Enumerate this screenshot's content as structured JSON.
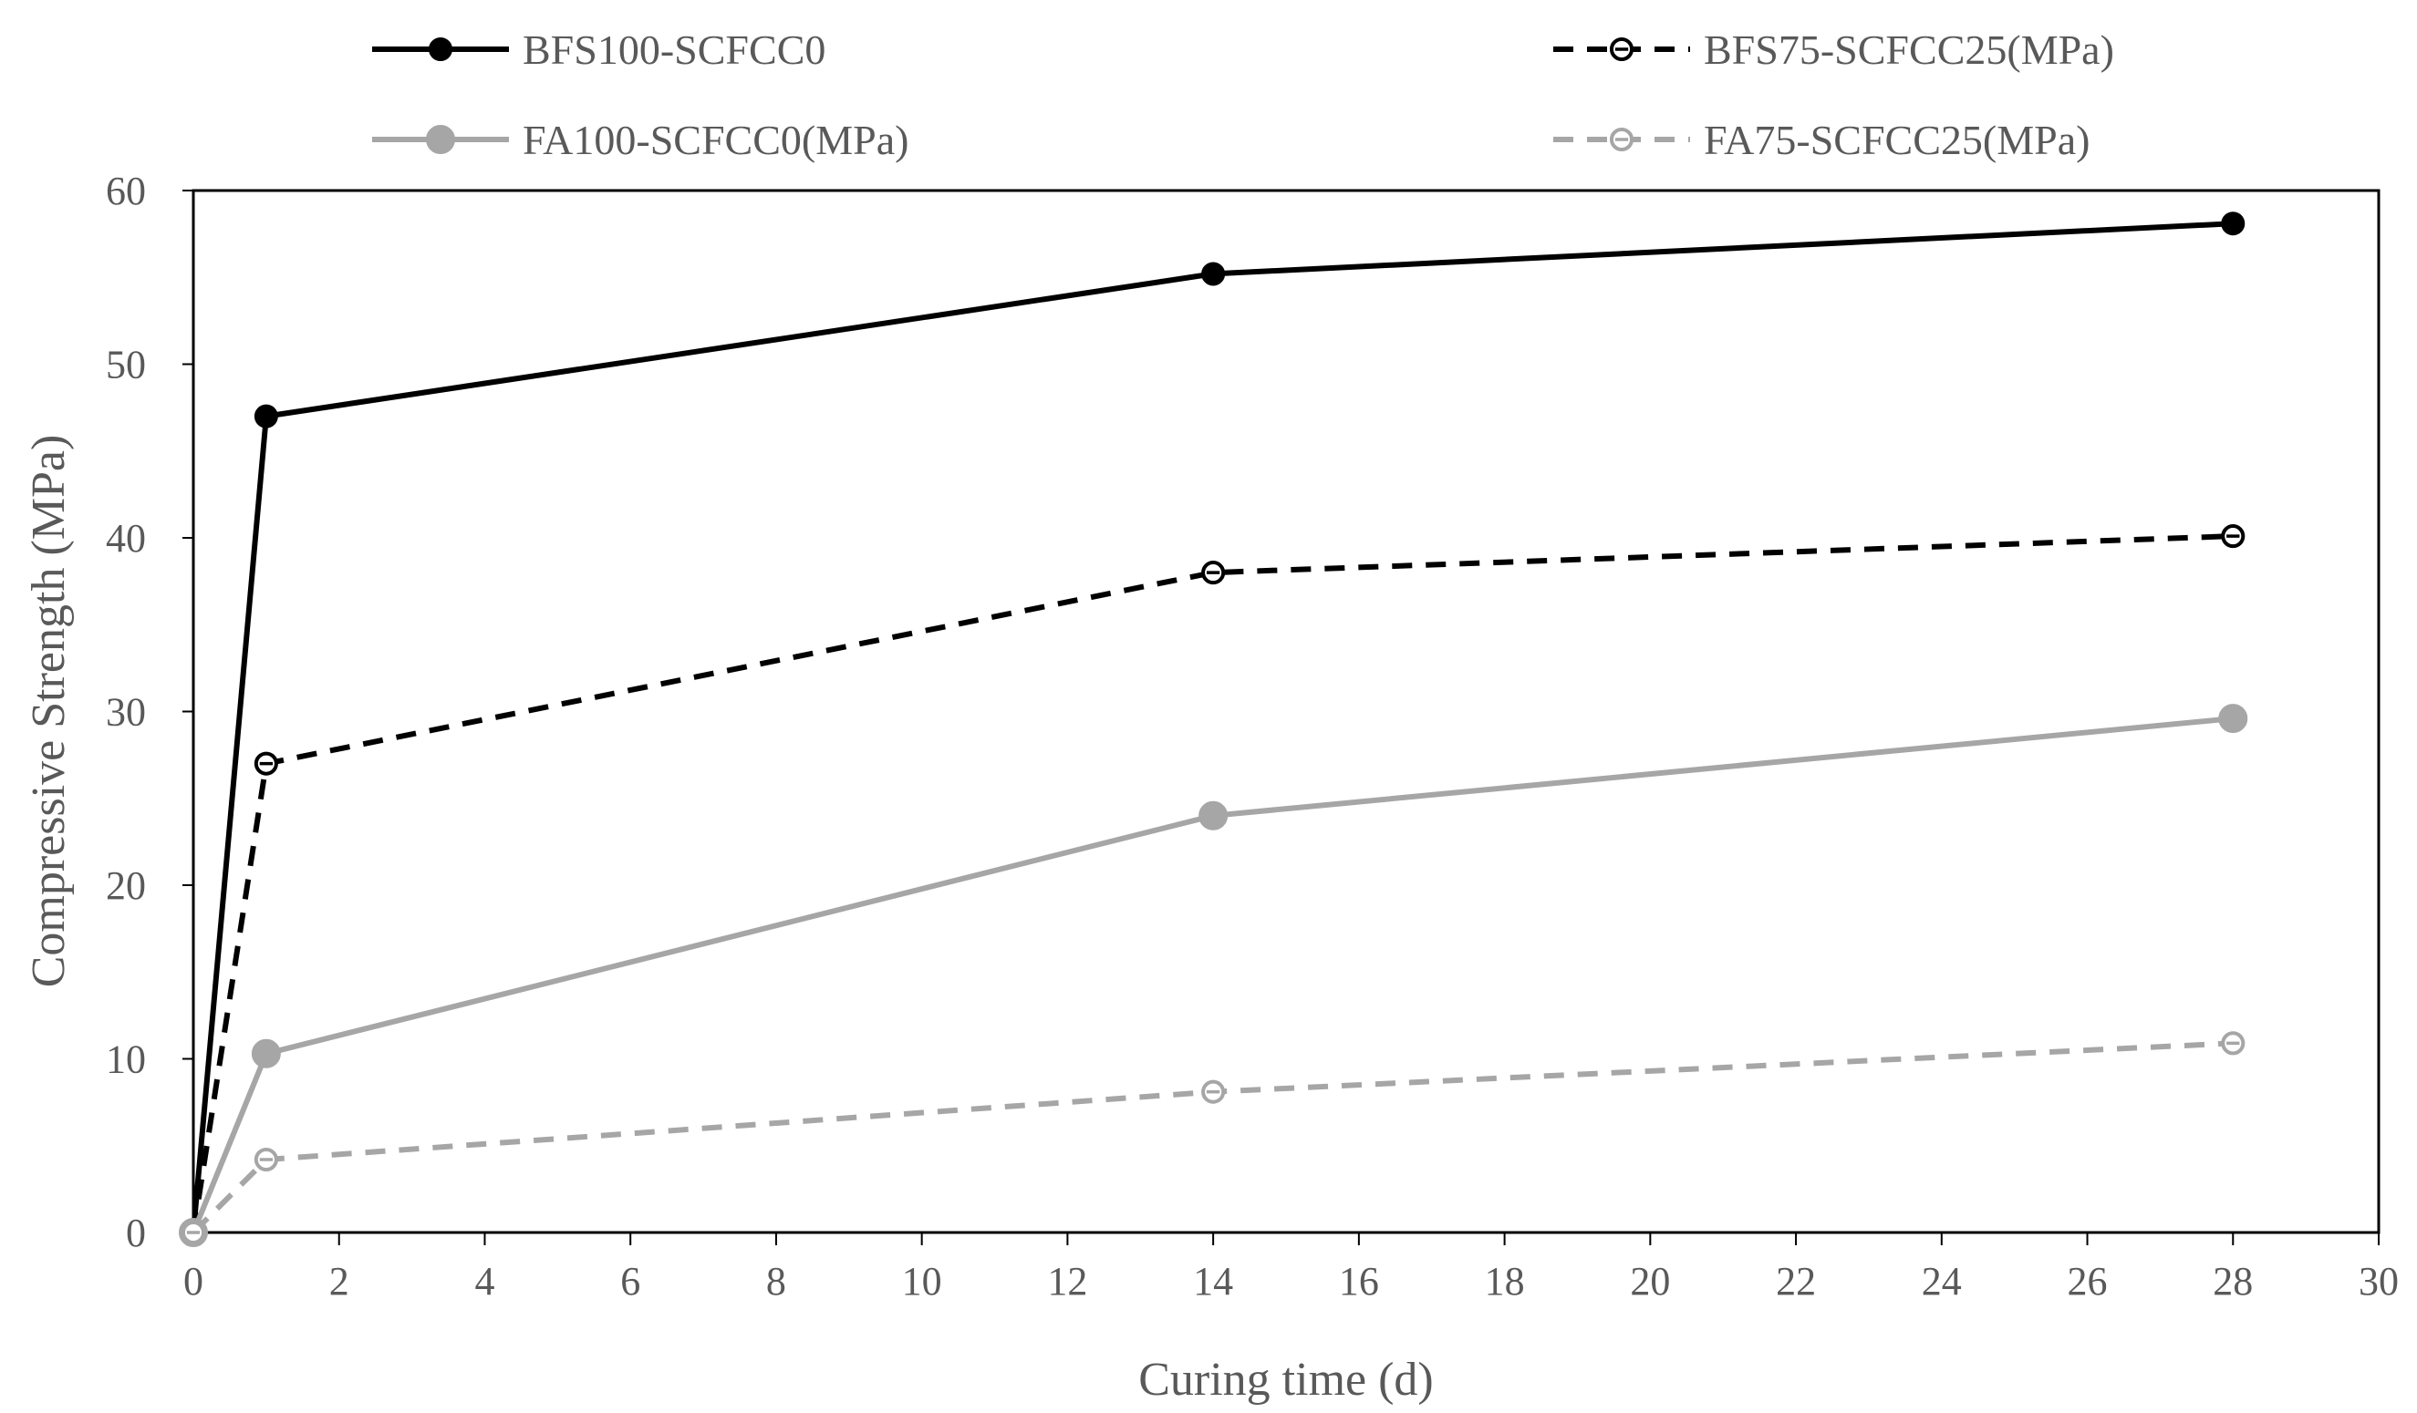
{
  "chart_data": {
    "type": "line",
    "title": "",
    "xlabel": "Curing time (d)",
    "ylabel": "Compressive Strength (MPa)",
    "xlim": [
      0,
      30
    ],
    "ylim": [
      0,
      60
    ],
    "xticks": [
      0,
      2,
      4,
      6,
      8,
      10,
      12,
      14,
      16,
      18,
      20,
      22,
      24,
      26,
      28,
      30
    ],
    "yticks": [
      0,
      10,
      20,
      30,
      40,
      50,
      60
    ],
    "grid": false,
    "legend_position": "top",
    "series": [
      {
        "name": "BFS100-SCFCC0",
        "x": [
          0,
          1,
          14,
          28
        ],
        "values": [
          0,
          47,
          55.2,
          58.1
        ],
        "color": "#000000",
        "dashed": false,
        "marker": "filled"
      },
      {
        "name": "BFS75-SCFCC25(MPa)",
        "x": [
          0,
          1,
          14,
          28
        ],
        "values": [
          0,
          27,
          38,
          40.1
        ],
        "color": "#000000",
        "dashed": true,
        "marker": "open-bar"
      },
      {
        "name": "FA100-SCFCC0(MPa)",
        "x": [
          0,
          1,
          14,
          28
        ],
        "values": [
          0,
          10.3,
          24,
          29.6
        ],
        "color": "#a6a6a6",
        "dashed": false,
        "marker": "filled"
      },
      {
        "name": "FA75-SCFCC25(MPa)",
        "x": [
          0,
          1,
          14,
          28
        ],
        "values": [
          0,
          4.2,
          8.1,
          10.9
        ],
        "color": "#a6a6a6",
        "dashed": true,
        "marker": "open-bar"
      }
    ]
  }
}
